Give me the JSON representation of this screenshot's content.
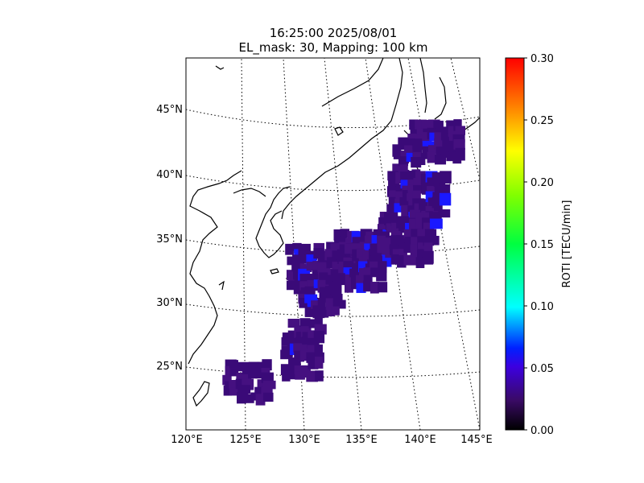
{
  "title": {
    "line1": "16:25:00 2025/08/01",
    "line2": "EL_mask: 30, Mapping: 100 km"
  },
  "map": {
    "lat_labels": [
      {
        "text": "25°N",
        "lat": 25
      },
      {
        "text": "30°N",
        "lat": 30
      },
      {
        "text": "35°N",
        "lat": 35
      },
      {
        "text": "40°N",
        "lat": 40
      },
      {
        "text": "45°N",
        "lat": 45
      }
    ],
    "lon_labels": [
      {
        "text": "120°E",
        "lon": 120
      },
      {
        "text": "125°E",
        "lon": 125
      },
      {
        "text": "130°E",
        "lon": 130
      },
      {
        "text": "135°E",
        "lon": 135
      },
      {
        "text": "140°E",
        "lon": 140
      },
      {
        "text": "145°E",
        "lon": 145
      }
    ],
    "extent": {
      "lon": [
        120,
        145
      ],
      "lat": [
        20,
        49
      ]
    },
    "gridline_style": "dotted",
    "data_color_hex": "#3a0a78",
    "data_color_highlight": "#1a18ff"
  },
  "colorbar": {
    "label": "ROTI [TECU/min]",
    "ticks": [
      "0.00",
      "0.05",
      "0.10",
      "0.15",
      "0.20",
      "0.25",
      "0.30"
    ],
    "range": [
      0,
      0.3
    ],
    "colormap": [
      "#000000",
      "#5a0a8c",
      "#0000ff",
      "#00ffff",
      "#00ff00",
      "#ffff00",
      "#ff8000",
      "#ff0000"
    ]
  }
}
